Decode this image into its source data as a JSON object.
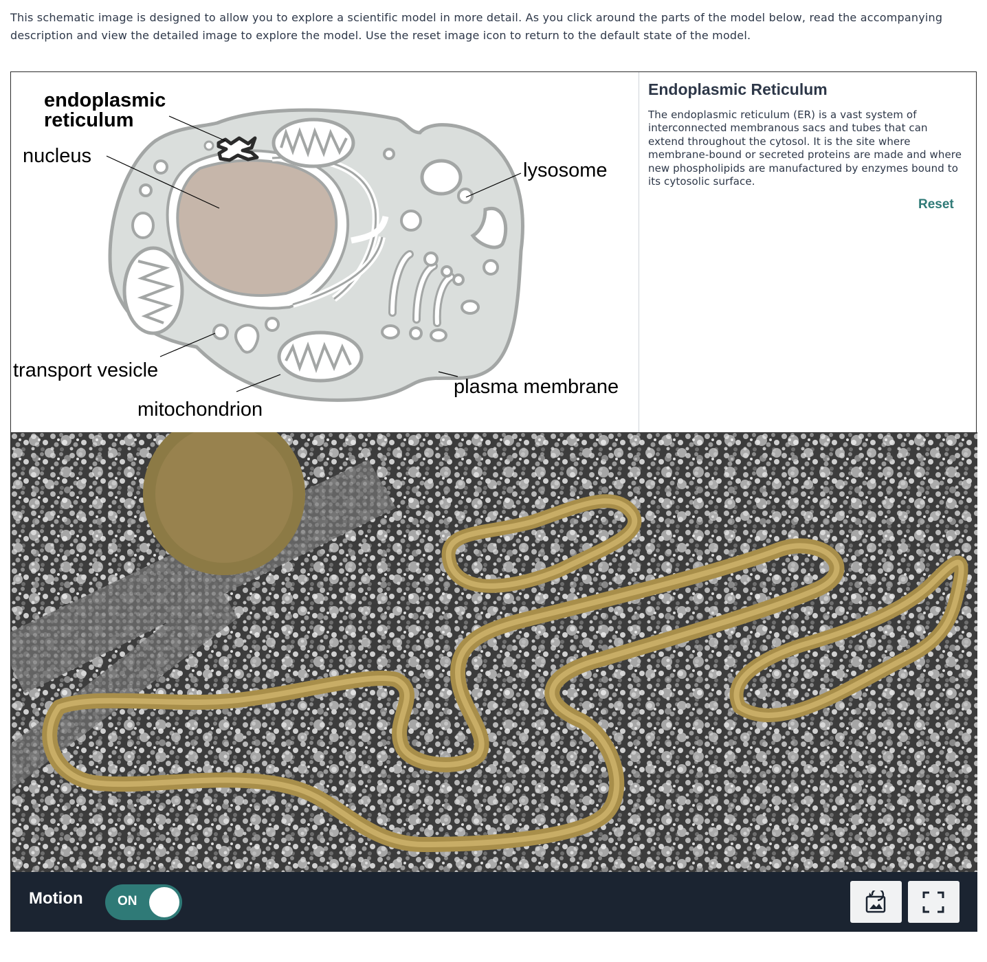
{
  "intro_text": "This schematic image is designed to allow you to explore a scientific model in more detail. As you click around the parts of the model below, read the accompanying description and view the detailed image to explore the model. Use the reset image icon to return to the default state of the model.",
  "schematic": {
    "labels": {
      "er_line1": "endoplasmic",
      "er_line2": "reticulum",
      "nucleus": "nucleus",
      "lysosome": "lysosome",
      "transport_vesicle": "transport vesicle",
      "mitochondrion": "mitochondrion",
      "plasma_membrane": "plasma membrane"
    },
    "colors": {
      "cytoplasm": "#dadedc",
      "membrane": "#a3a6a5",
      "nucleus": "#c6b6aa",
      "er_highlight": "#2b2b2b"
    }
  },
  "info": {
    "title": "Endoplasmic Reticulum",
    "description": "The endoplasmic reticulum (ER) is a vast system of interconnected membranous sacs and tubes that can extend throughout the cytosol. It is the site where membrane-bound or secreted proteins are made and where new phospholipids are manufactured by enzymes bound to its cytosolic surface.",
    "reset_label": "Reset"
  },
  "controls": {
    "motion_label": "Motion",
    "motion_state": "ON",
    "reset_image_icon": "reset-image-icon",
    "fullscreen_icon": "fullscreen-icon",
    "accent": "#2f7a77",
    "bar_color": "#1b2431"
  }
}
